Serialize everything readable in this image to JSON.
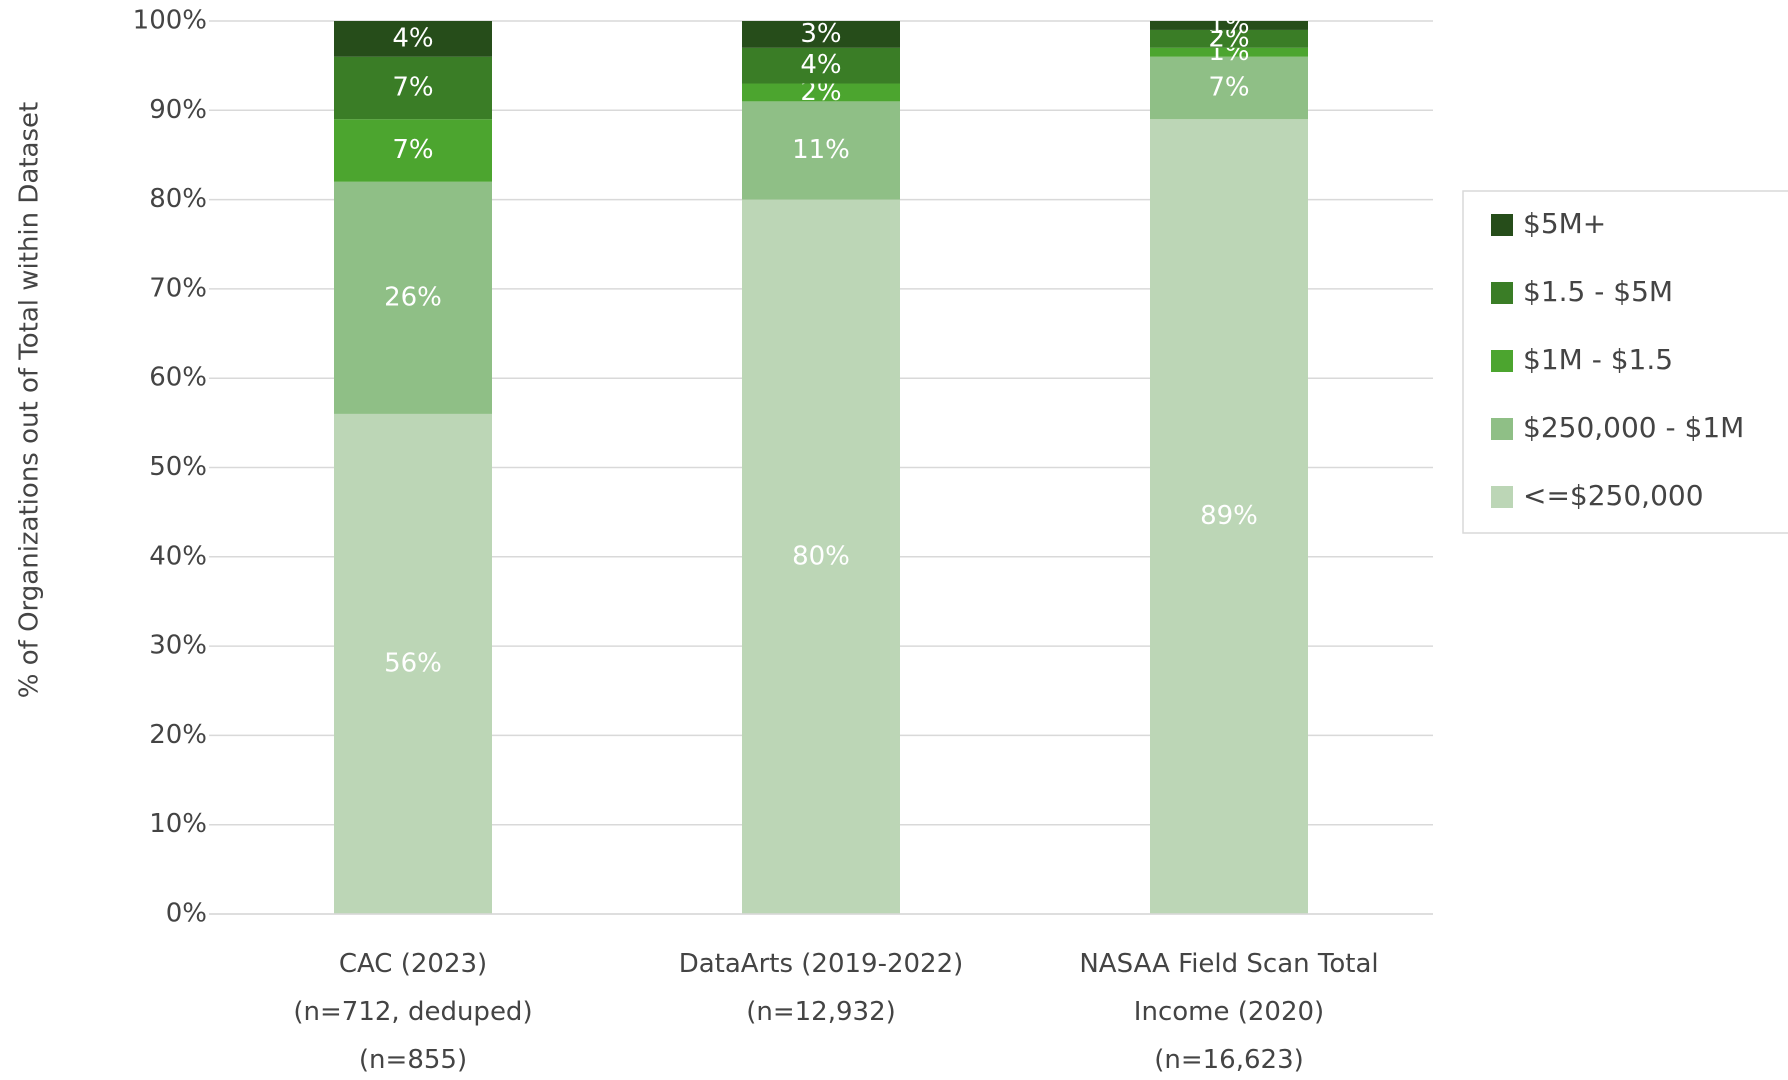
{
  "chart_data": {
    "type": "stacked_bar",
    "y_label": "% of Organizations out of Total within Dataset",
    "categories": [
      "CAC (2023)\n(n=712, deduped)\n(n=855)",
      "DataArts  (2019-2022)\n(n=12,932)",
      "NASAA Field Scan Total\nIncome (2020)\n(n=16,623)"
    ],
    "series": [
      {
        "name": "<=$250,000",
        "color": "#bcd6b6",
        "values": [
          56,
          80,
          89
        ],
        "value_labels": [
          "56%",
          "80%",
          "89%"
        ]
      },
      {
        "name": "$250,000 - $1M",
        "color": "#8fbf86",
        "values": [
          26,
          11,
          7
        ],
        "value_labels": [
          "26%",
          "11%",
          "7%"
        ]
      },
      {
        "name": "$1M - $1.5",
        "color": "#4ca52f",
        "values": [
          7,
          2,
          1
        ],
        "value_labels": [
          "7%",
          "2%",
          "1%"
        ]
      },
      {
        "name": "$1.5 - $5M",
        "color": "#3a7d26",
        "values": [
          7,
          4,
          2
        ],
        "value_labels": [
          "7%",
          "4%",
          "2%"
        ]
      },
      {
        "name": "$5M+",
        "color": "#264d1a",
        "values": [
          4,
          3,
          1
        ],
        "value_labels": [
          "4%",
          "3%",
          "1%"
        ]
      }
    ],
    "ylim": [
      0,
      100
    ],
    "yticks": [
      {
        "value": 0,
        "label": "0%"
      },
      {
        "value": 10,
        "label": "10%"
      },
      {
        "value": 20,
        "label": "20%"
      },
      {
        "value": 30,
        "label": "30%"
      },
      {
        "value": 40,
        "label": "40%"
      },
      {
        "value": 50,
        "label": "50%"
      },
      {
        "value": 60,
        "label": "60%"
      },
      {
        "value": 70,
        "label": "70%"
      },
      {
        "value": 80,
        "label": "80%"
      },
      {
        "value": 90,
        "label": "90%"
      },
      {
        "value": 100,
        "label": "100%"
      }
    ],
    "grid": true,
    "legend": "right"
  }
}
